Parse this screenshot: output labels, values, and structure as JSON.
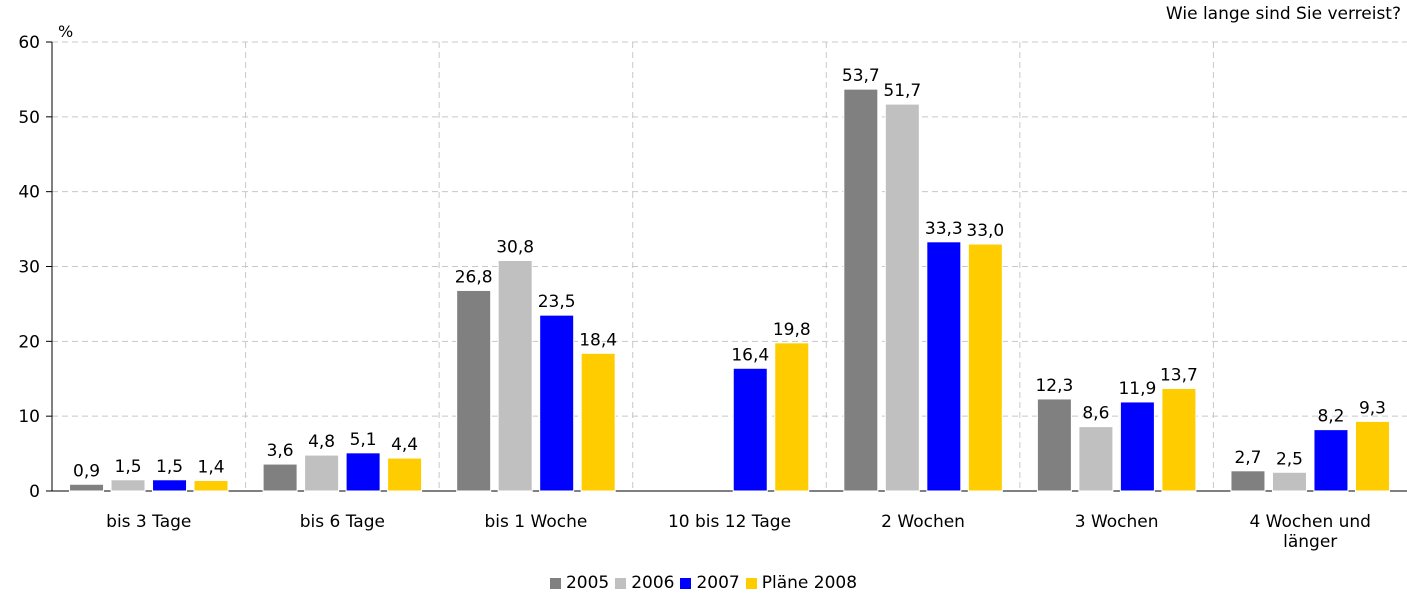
{
  "chart_data": {
    "type": "bar",
    "title": "Wie lange sind Sie verreist?",
    "unit_label": "%",
    "categories": [
      [
        "bis 3 Tage"
      ],
      [
        "bis 6 Tage"
      ],
      [
        "bis 1 Woche"
      ],
      [
        "10 bis 12 Tage"
      ],
      [
        "2 Wochen"
      ],
      [
        "3 Wochen"
      ],
      [
        "4 Wochen und",
        "länger"
      ]
    ],
    "series": [
      {
        "name": "2005",
        "color": "#808080",
        "values": [
          0.9,
          3.6,
          26.8,
          null,
          53.7,
          12.3,
          2.7
        ],
        "labels": [
          "0,9",
          "3,6",
          "26,8",
          null,
          "53,7",
          "12,3",
          "2,7"
        ]
      },
      {
        "name": "2006",
        "color": "#c0c0c0",
        "values": [
          1.5,
          4.8,
          30.8,
          null,
          51.7,
          8.6,
          2.5
        ],
        "labels": [
          "1,5",
          "4,8",
          "30,8",
          null,
          "51,7",
          "8,6",
          "2,5"
        ]
      },
      {
        "name": "2007",
        "color": "#0000ff",
        "values": [
          1.5,
          5.1,
          23.5,
          16.4,
          33.3,
          11.9,
          8.2
        ],
        "labels": [
          "1,5",
          "5,1",
          "23,5",
          "16,4",
          "33,3",
          "11,9",
          "8,2"
        ]
      },
      {
        "name": "Pläne 2008",
        "color": "#ffcc00",
        "values": [
          1.4,
          4.4,
          18.4,
          19.8,
          33.0,
          13.7,
          9.3
        ],
        "labels": [
          "1,4",
          "4,4",
          "18,4",
          "19,8",
          "33,0",
          "13,7",
          "9,3"
        ]
      }
    ],
    "yticks": [
      "0",
      "10",
      "20",
      "30",
      "40",
      "50",
      "60"
    ],
    "ylim": [
      0,
      60
    ],
    "grid": true,
    "legend_position": "bottom"
  }
}
